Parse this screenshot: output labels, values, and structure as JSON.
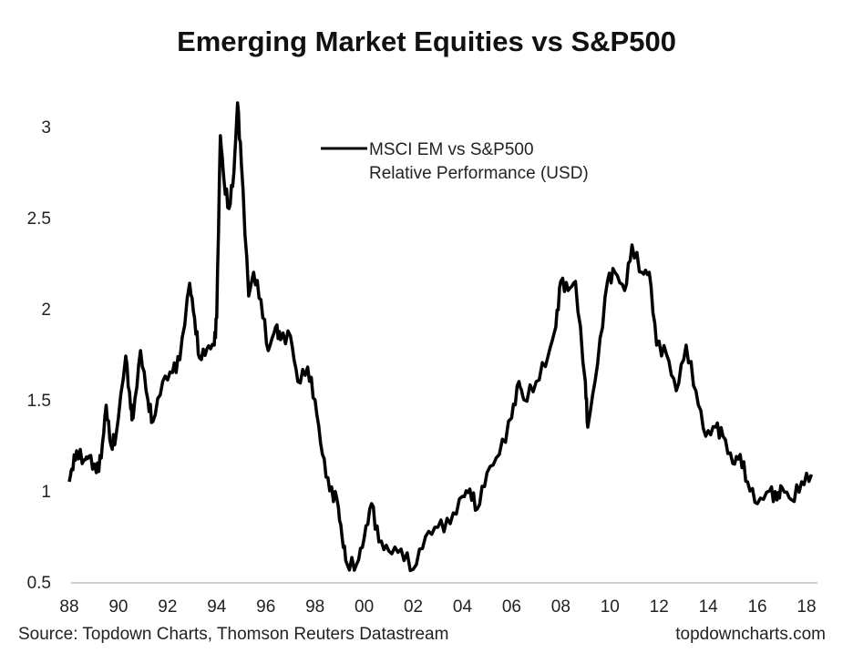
{
  "chart_data": {
    "type": "line",
    "title": "Emerging Market Equities vs S&P500",
    "xlabel": "",
    "ylabel": "",
    "xlim": [
      1988,
      2018
    ],
    "ylim": [
      0.5,
      3.2
    ],
    "x_ticks": [
      "88",
      "90",
      "92",
      "94",
      "96",
      "98",
      "00",
      "02",
      "04",
      "06",
      "08",
      "10",
      "12",
      "14",
      "16",
      "18"
    ],
    "y_ticks": [
      {
        "v": 0.5,
        "label": "0.5"
      },
      {
        "v": 1,
        "label": "1"
      },
      {
        "v": 1.5,
        "label": "1.5"
      },
      {
        "v": 2,
        "label": "2"
      },
      {
        "v": 2.5,
        "label": "2.5"
      },
      {
        "v": 3,
        "label": "3"
      }
    ],
    "grid": false,
    "legend_placement": "top-center",
    "series": [
      {
        "name_line1": "MSCI EM vs S&P500",
        "name_line2": "Relative Performance (USD)",
        "color": "#000000",
        "x": [
          1988.0,
          1988.1,
          1988.3,
          1988.6,
          1988.8,
          1989.1,
          1989.3,
          1989.5,
          1989.7,
          1989.9,
          1990.3,
          1990.5,
          1990.6,
          1990.9,
          1991.2,
          1991.4,
          1991.8,
          1992.2,
          1992.5,
          1992.9,
          1993.1,
          1993.3,
          1993.6,
          1993.9,
          1994.0,
          1994.15,
          1994.3,
          1994.5,
          1994.7,
          1994.85,
          1995.0,
          1995.3,
          1995.5,
          1995.8,
          1996.1,
          1996.4,
          1996.6,
          1997.0,
          1997.3,
          1997.7,
          1998.0,
          1998.3,
          1998.6,
          1998.9,
          1999.1,
          1999.3,
          1999.7,
          2000.0,
          2000.3,
          2000.6,
          2001.0,
          2001.5,
          2002.0,
          2002.5,
          2003.0,
          2003.5,
          2004.0,
          2004.3,
          2004.6,
          2005.0,
          2005.5,
          2006.0,
          2006.3,
          2006.5,
          2007.0,
          2007.5,
          2007.8,
          2008.0,
          2008.3,
          2008.6,
          2009.0,
          2009.1,
          2009.5,
          2009.9,
          2010.2,
          2010.6,
          2010.9,
          2011.3,
          2011.6,
          2011.9,
          2012.3,
          2012.7,
          2013.1,
          2013.5,
          2013.9,
          2014.3,
          2014.6,
          2015.0,
          2015.3,
          2015.6,
          2016.0,
          2016.5,
          2016.8,
          2017.0,
          2017.4,
          2017.8,
          2018.2
        ],
        "values": [
          1.05,
          1.12,
          1.22,
          1.17,
          1.19,
          1.1,
          1.18,
          1.47,
          1.25,
          1.3,
          1.74,
          1.45,
          1.4,
          1.77,
          1.5,
          1.38,
          1.6,
          1.65,
          1.72,
          2.14,
          1.95,
          1.73,
          1.78,
          1.8,
          1.95,
          2.95,
          2.7,
          2.55,
          2.75,
          3.13,
          2.8,
          2.07,
          2.2,
          2.05,
          1.77,
          1.9,
          1.83,
          1.85,
          1.6,
          1.68,
          1.5,
          1.2,
          1.0,
          0.95,
          0.75,
          0.6,
          0.6,
          0.74,
          0.93,
          0.72,
          0.67,
          0.68,
          0.57,
          0.75,
          0.8,
          0.82,
          0.97,
          1.01,
          0.9,
          1.1,
          1.2,
          1.4,
          1.6,
          1.5,
          1.6,
          1.75,
          1.9,
          2.15,
          2.1,
          2.15,
          1.6,
          1.35,
          1.7,
          2.15,
          2.2,
          2.1,
          2.35,
          2.2,
          2.2,
          1.8,
          1.75,
          1.55,
          1.8,
          1.55,
          1.3,
          1.35,
          1.3,
          1.15,
          1.2,
          1.05,
          0.93,
          1.0,
          0.95,
          1.02,
          0.95,
          1.05,
          1.09
        ]
      }
    ],
    "source": "Source: Topdown Charts, Thomson Reuters Datastream",
    "credit": "topdowncharts.com"
  }
}
